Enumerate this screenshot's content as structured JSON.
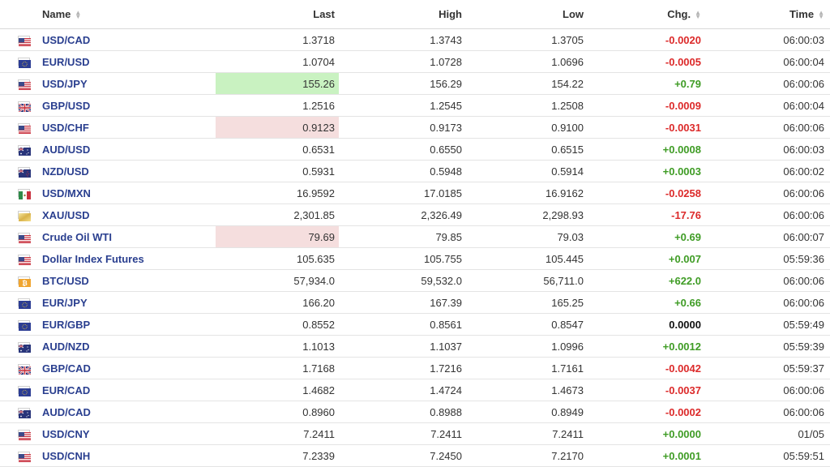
{
  "header": {
    "name": "Name",
    "last": "Last",
    "high": "High",
    "low": "Low",
    "chg": "Chg.",
    "time": "Time"
  },
  "colors": {
    "positive": "#3f9c25",
    "negative": "#dc2a2a",
    "link": "#2a3f8f",
    "highlight_up": "#c9f2c1",
    "highlight_down": "#f5dede"
  },
  "rows": [
    {
      "name": "USD/CAD",
      "flag": "us-flag-icon",
      "last": "1.3718",
      "high": "1.3743",
      "low": "1.3705",
      "chg": "-0.0020",
      "dir": "neg",
      "time": "06:00:03",
      "hl": ""
    },
    {
      "name": "EUR/USD",
      "flag": "eu-flag-icon",
      "last": "1.0704",
      "high": "1.0728",
      "low": "1.0696",
      "chg": "-0.0005",
      "dir": "neg",
      "time": "06:00:04",
      "hl": ""
    },
    {
      "name": "USD/JPY",
      "flag": "us-flag-icon",
      "last": "155.26",
      "high": "156.29",
      "low": "154.22",
      "chg": "+0.79",
      "dir": "pos",
      "time": "06:00:06",
      "hl": "up"
    },
    {
      "name": "GBP/USD",
      "flag": "uk-flag-icon",
      "last": "1.2516",
      "high": "1.2545",
      "low": "1.2508",
      "chg": "-0.0009",
      "dir": "neg",
      "time": "06:00:04",
      "hl": ""
    },
    {
      "name": "USD/CHF",
      "flag": "us-flag-icon",
      "last": "0.9123",
      "high": "0.9173",
      "low": "0.9100",
      "chg": "-0.0031",
      "dir": "neg",
      "time": "06:00:06",
      "hl": "down"
    },
    {
      "name": "AUD/USD",
      "flag": "au-flag-icon",
      "last": "0.6531",
      "high": "0.6550",
      "low": "0.6515",
      "chg": "+0.0008",
      "dir": "pos",
      "time": "06:00:03",
      "hl": ""
    },
    {
      "name": "NZD/USD",
      "flag": "nz-flag-icon",
      "last": "0.5931",
      "high": "0.5948",
      "low": "0.5914",
      "chg": "+0.0003",
      "dir": "pos",
      "time": "06:00:02",
      "hl": ""
    },
    {
      "name": "USD/MXN",
      "flag": "mx-flag-icon",
      "last": "16.9592",
      "high": "17.0185",
      "low": "16.9162",
      "chg": "-0.0258",
      "dir": "neg",
      "time": "06:00:06",
      "hl": ""
    },
    {
      "name": "XAU/USD",
      "flag": "gold-icon",
      "last": "2,301.85",
      "high": "2,326.49",
      "low": "2,298.93",
      "chg": "-17.76",
      "dir": "neg",
      "time": "06:00:06",
      "hl": ""
    },
    {
      "name": "Crude Oil WTI",
      "flag": "us-flag-icon",
      "last": "79.69",
      "high": "79.85",
      "low": "79.03",
      "chg": "+0.69",
      "dir": "pos",
      "time": "06:00:07",
      "hl": "down"
    },
    {
      "name": "Dollar Index Futures",
      "flag": "us-flag-icon",
      "last": "105.635",
      "high": "105.755",
      "low": "105.445",
      "chg": "+0.007",
      "dir": "pos",
      "time": "05:59:36",
      "hl": ""
    },
    {
      "name": "BTC/USD",
      "flag": "bitcoin-icon",
      "last": "57,934.0",
      "high": "59,532.0",
      "low": "56,711.0",
      "chg": "+622.0",
      "dir": "pos",
      "time": "06:00:06",
      "hl": ""
    },
    {
      "name": "EUR/JPY",
      "flag": "eu-flag-icon",
      "last": "166.20",
      "high": "167.39",
      "low": "165.25",
      "chg": "+0.66",
      "dir": "pos",
      "time": "06:00:06",
      "hl": ""
    },
    {
      "name": "EUR/GBP",
      "flag": "eu-flag-icon",
      "last": "0.8552",
      "high": "0.8561",
      "low": "0.8547",
      "chg": "0.0000",
      "dir": "zero",
      "time": "05:59:49",
      "hl": ""
    },
    {
      "name": "AUD/NZD",
      "flag": "au-flag-icon",
      "last": "1.1013",
      "high": "1.1037",
      "low": "1.0996",
      "chg": "+0.0012",
      "dir": "pos",
      "time": "05:59:39",
      "hl": ""
    },
    {
      "name": "GBP/CAD",
      "flag": "uk-flag-icon",
      "last": "1.7168",
      "high": "1.7216",
      "low": "1.7161",
      "chg": "-0.0042",
      "dir": "neg",
      "time": "05:59:37",
      "hl": ""
    },
    {
      "name": "EUR/CAD",
      "flag": "eu-flag-icon",
      "last": "1.4682",
      "high": "1.4724",
      "low": "1.4673",
      "chg": "-0.0037",
      "dir": "neg",
      "time": "06:00:06",
      "hl": ""
    },
    {
      "name": "AUD/CAD",
      "flag": "au-flag-icon",
      "last": "0.8960",
      "high": "0.8988",
      "low": "0.8949",
      "chg": "-0.0002",
      "dir": "neg",
      "time": "06:00:06",
      "hl": ""
    },
    {
      "name": "USD/CNY",
      "flag": "us-flag-icon",
      "last": "7.2411",
      "high": "7.2411",
      "low": "7.2411",
      "chg": "+0.0000",
      "dir": "pos",
      "time": "01/05",
      "hl": ""
    },
    {
      "name": "USD/CNH",
      "flag": "us-flag-icon",
      "last": "7.2339",
      "high": "7.2450",
      "low": "7.2170",
      "chg": "+0.0001",
      "dir": "pos",
      "time": "05:59:51",
      "hl": ""
    }
  ]
}
